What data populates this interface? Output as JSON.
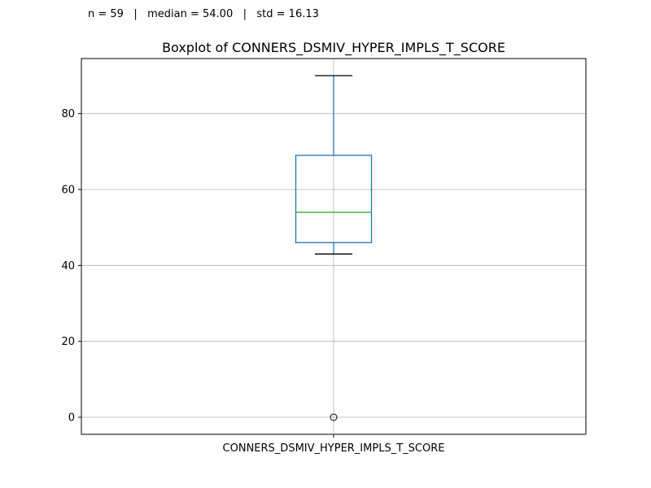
{
  "stats_text": "n = 59   |   median = 54.00   |   std = 16.13",
  "chart_data": {
    "type": "box",
    "title": "Boxplot of CONNERS_DSMIV_HYPER_IMPLS_T_SCORE",
    "xlabel": "",
    "ylabel": "",
    "categories": [
      "CONNERS_DSMIV_HYPER_IMPLS_T_SCORE"
    ],
    "series": [
      {
        "whisker_low": 43,
        "q1": 46,
        "median": 54,
        "q3": 69,
        "whisker_high": 90,
        "outliers": [
          0
        ]
      }
    ],
    "ylim": [
      -4.5,
      94.5
    ],
    "yticks": [
      0,
      20,
      40,
      60,
      80
    ],
    "grid": true,
    "colors": {
      "box": "#1f77b4",
      "median": "#2ca02c",
      "whisker_cap": "#000000",
      "grid": "#b0b0b0"
    }
  }
}
